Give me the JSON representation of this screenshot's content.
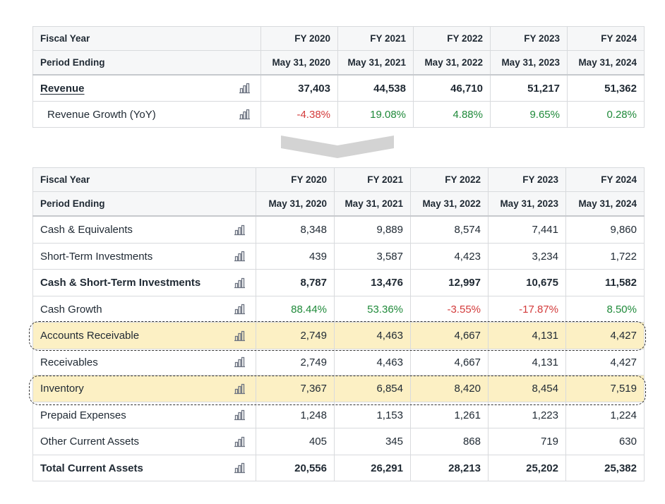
{
  "top_table": {
    "header_fiscal_label": "Fiscal Year",
    "header_period_label": "Period Ending",
    "years": [
      "FY 2020",
      "FY 2021",
      "FY 2022",
      "FY 2023",
      "FY 2024"
    ],
    "periods": [
      "May 31, 2020",
      "May 31, 2021",
      "May 31, 2022",
      "May 31, 2023",
      "May 31, 2024"
    ],
    "rows": [
      {
        "label": "Revenue",
        "values": [
          "37,403",
          "44,538",
          "46,710",
          "51,217",
          "51,362"
        ]
      },
      {
        "label": "Revenue Growth (YoY)",
        "values": [
          "-4.38%",
          "19.08%",
          "4.88%",
          "9.65%",
          "0.28%"
        ]
      }
    ]
  },
  "bottom_table": {
    "header_fiscal_label": "Fiscal Year",
    "header_period_label": "Period Ending",
    "years": [
      "FY 2020",
      "FY 2021",
      "FY 2022",
      "FY 2023",
      "FY 2024"
    ],
    "periods": [
      "May 31, 2020",
      "May 31, 2021",
      "May 31, 2022",
      "May 31, 2023",
      "May 31, 2024"
    ],
    "rows": [
      {
        "label": "Cash & Equivalents",
        "values": [
          "8,348",
          "9,889",
          "8,574",
          "7,441",
          "9,860"
        ]
      },
      {
        "label": "Short-Term Investments",
        "values": [
          "439",
          "3,587",
          "4,423",
          "3,234",
          "1,722"
        ]
      },
      {
        "label": "Cash & Short-Term Investments",
        "values": [
          "8,787",
          "13,476",
          "12,997",
          "10,675",
          "11,582"
        ]
      },
      {
        "label": "Cash Growth",
        "values": [
          "88.44%",
          "53.36%",
          "-3.55%",
          "-17.87%",
          "8.50%"
        ]
      },
      {
        "label": "Accounts Receivable",
        "values": [
          "2,749",
          "4,463",
          "4,667",
          "4,131",
          "4,427"
        ]
      },
      {
        "label": "Receivables",
        "values": [
          "2,749",
          "4,463",
          "4,667",
          "4,131",
          "4,427"
        ]
      },
      {
        "label": "Inventory",
        "values": [
          "7,367",
          "6,854",
          "8,420",
          "8,454",
          "7,519"
        ]
      },
      {
        "label": "Prepaid Expenses",
        "values": [
          "1,248",
          "1,153",
          "1,261",
          "1,223",
          "1,224"
        ]
      },
      {
        "label": "Other Current Assets",
        "values": [
          "405",
          "345",
          "868",
          "719",
          "630"
        ]
      },
      {
        "label": "Total Current Assets",
        "values": [
          "20,556",
          "26,291",
          "28,213",
          "25,202",
          "25,382"
        ]
      }
    ]
  },
  "icons": {
    "row_chart": "bar-chart-icon",
    "transition": "chevron-down-icon"
  },
  "colors": {
    "positive": "#1f8a3a",
    "negative": "#d33a3a",
    "highlight": "#fcf0c4"
  }
}
